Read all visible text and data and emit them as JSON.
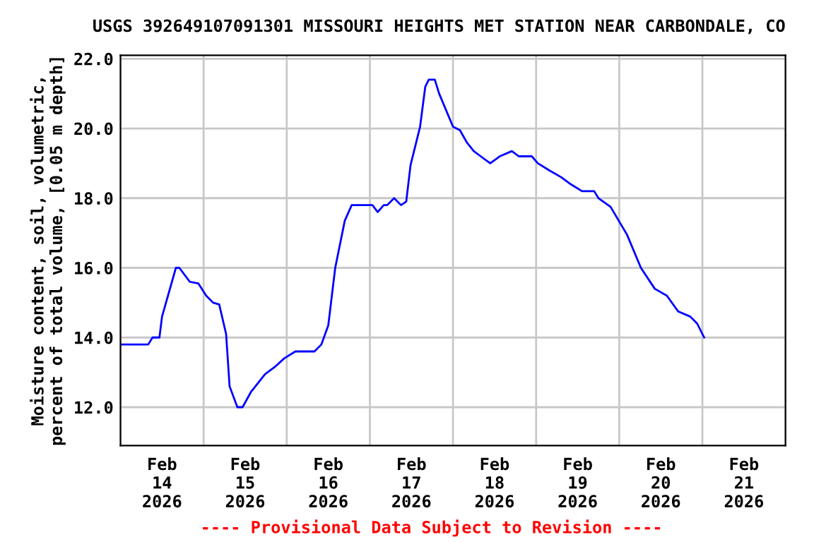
{
  "chart_data": {
    "type": "line",
    "title": "USGS 392649107091301 MISSOURI HEIGHTS MET STATION NEAR CARBONDALE, CO",
    "ylabel": "Moisture content, soil, volumetric,\npercent of total volume, [0.05 m depth]",
    "annotations": [
      "---- Provisional Data Subject to Revision ----"
    ],
    "series": [
      {
        "color": "#0000ff",
        "x": [
          "2026-02-14T00:00",
          "2026-02-14T08:00",
          "2026-02-14T09:15",
          "2026-02-14T11:15",
          "2026-02-14T12:00",
          "2026-02-14T16:00",
          "2026-02-14T17:00",
          "2026-02-14T20:00",
          "2026-02-14T22:30",
          "2026-02-15T00:45",
          "2026-02-15T02:45",
          "2026-02-15T04:30",
          "2026-02-15T06:30",
          "2026-02-15T07:30",
          "2026-02-15T09:45",
          "2026-02-15T11:15",
          "2026-02-15T13:45",
          "2026-02-15T17:45",
          "2026-02-15T20:30",
          "2026-02-15T23:15",
          "2026-02-16T02:30",
          "2026-02-16T08:00",
          "2026-02-16T10:00",
          "2026-02-16T12:00",
          "2026-02-16T14:00",
          "2026-02-16T16:45",
          "2026-02-16T18:45",
          "2026-02-17T00:45",
          "2026-02-17T02:15",
          "2026-02-17T04:00",
          "2026-02-17T05:00",
          "2026-02-17T07:00",
          "2026-02-17T09:00",
          "2026-02-17T10:30",
          "2026-02-17T11:45",
          "2026-02-17T14:30",
          "2026-02-17T16:00",
          "2026-02-17T17:00",
          "2026-02-17T18:45",
          "2026-02-17T20:00",
          "2026-02-18T00:00",
          "2026-02-18T02:00",
          "2026-02-18T04:00",
          "2026-02-18T06:00",
          "2026-02-18T08:00",
          "2026-02-18T10:45",
          "2026-02-18T13:30",
          "2026-02-18T17:00",
          "2026-02-18T19:00",
          "2026-02-18T22:45",
          "2026-02-19T00:30",
          "2026-02-19T03:45",
          "2026-02-19T07:15",
          "2026-02-19T10:00",
          "2026-02-19T13:15",
          "2026-02-19T16:45",
          "2026-02-19T18:00",
          "2026-02-19T21:30",
          "2026-02-20T02:15",
          "2026-02-20T06:15",
          "2026-02-20T10:15",
          "2026-02-20T13:45",
          "2026-02-20T17:00",
          "2026-02-20T20:30",
          "2026-02-20T22:30",
          "2026-02-21T00:30"
        ],
        "values": [
          13.8,
          13.8,
          14.0,
          14.0,
          14.6,
          16.0,
          16.0,
          15.6,
          15.55,
          15.2,
          15.0,
          14.95,
          14.1,
          12.6,
          12.0,
          12.0,
          12.45,
          12.95,
          13.15,
          13.4,
          13.6,
          13.6,
          13.8,
          14.35,
          16.0,
          17.35,
          17.8,
          17.8,
          17.6,
          17.8,
          17.8,
          18.0,
          17.8,
          17.9,
          18.95,
          20.05,
          21.2,
          21.4,
          21.4,
          21.0,
          20.05,
          19.95,
          19.6,
          19.35,
          19.2,
          19.0,
          19.2,
          19.35,
          19.2,
          19.2,
          19.0,
          18.8,
          18.6,
          18.4,
          18.2,
          18.2,
          18.0,
          17.75,
          16.95,
          16.0,
          15.4,
          15.2,
          14.75,
          14.6,
          14.4,
          14.0
        ]
      }
    ],
    "xlim": [
      "2026-02-14T00:00",
      "2026-02-22T00:00"
    ],
    "xticks": [
      {
        "value": "2026-02-14T00:00",
        "label": null
      },
      {
        "value": "2026-02-15T00:00",
        "label": null
      },
      {
        "value": "2026-02-16T00:00",
        "label": null
      },
      {
        "value": "2026-02-17T00:00",
        "label": null
      },
      {
        "value": "2026-02-18T00:00",
        "label": null
      },
      {
        "value": "2026-02-19T00:00",
        "label": null
      },
      {
        "value": "2026-02-20T00:00",
        "label": null
      },
      {
        "value": "2026-02-21T00:00",
        "label": null
      },
      {
        "value": "2026-02-22T00:00",
        "label": null
      },
      {
        "value": "2026-02-14T12:00",
        "label": "Feb\n14\n2026"
      },
      {
        "value": "2026-02-15T12:00",
        "label": "Feb\n15\n2026"
      },
      {
        "value": "2026-02-16T12:00",
        "label": "Feb\n16\n2026"
      },
      {
        "value": "2026-02-17T12:00",
        "label": "Feb\n17\n2026"
      },
      {
        "value": "2026-02-18T12:00",
        "label": "Feb\n18\n2026"
      },
      {
        "value": "2026-02-19T12:00",
        "label": "Feb\n19\n2026"
      },
      {
        "value": "2026-02-20T12:00",
        "label": "Feb\n20\n2026"
      },
      {
        "value": "2026-02-21T12:00",
        "label": "Feb\n21\n2026"
      }
    ],
    "ylim": [
      10.9,
      22.1
    ],
    "yticks": [
      {
        "value": 12,
        "label": "12.0"
      },
      {
        "value": 14,
        "label": "14.0"
      },
      {
        "value": 16,
        "label": "16.0"
      },
      {
        "value": 18,
        "label": "18.0"
      },
      {
        "value": 20,
        "label": "20.0"
      },
      {
        "value": 22,
        "label": "22.0"
      }
    ],
    "grid": true,
    "legend": false
  }
}
